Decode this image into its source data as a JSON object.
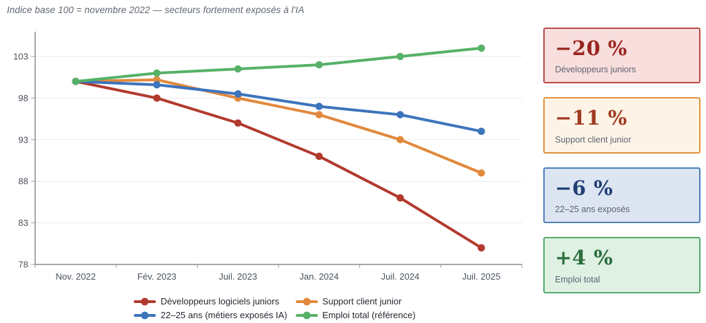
{
  "title": "Indice base 100 = novembre 2022 — secteurs fortement exposés à l'IA",
  "chart_data": {
    "type": "line",
    "x": [
      "Nov. 2022",
      "Fév. 2023",
      "Juil. 2023",
      "Jan. 2024",
      "Juil. 2024",
      "Juil. 2025"
    ],
    "series": [
      {
        "name": "Développeurs logiciels juniors",
        "color": "#b23a2e",
        "values": [
          100,
          98,
          95,
          91,
          86,
          80
        ]
      },
      {
        "name": "Support client junior",
        "color": "#e1893d",
        "values": [
          100,
          100.2,
          98,
          96,
          93,
          89
        ]
      },
      {
        "name": "22–25 ans (métiers exposés IA)",
        "color": "#3d74bb",
        "values": [
          100,
          99.6,
          98.5,
          97,
          96,
          94
        ]
      },
      {
        "name": "Emploi total (référence)",
        "color": "#57b168",
        "values": [
          100,
          101,
          101.5,
          102,
          103,
          104
        ]
      }
    ],
    "title": "Indice base 100 = novembre 2022 — secteurs fortement exposés à l'IA",
    "xlabel": "",
    "ylabel": "",
    "ylim": [
      78,
      105
    ],
    "yticks": [
      78,
      83,
      88,
      93,
      98,
      103
    ],
    "grid": true,
    "legend_position": "bottom"
  },
  "panels": [
    {
      "value": "−20 %",
      "label": "Développeurs juniors",
      "bg": "#f8dedd",
      "border": "#b84b45",
      "color": "#99251f"
    },
    {
      "value": "−11 %",
      "label": "Support client junior",
      "bg": "#fdf4e7",
      "border": "#e0903c",
      "color": "#a03a23"
    },
    {
      "value": "−6 %",
      "label": "22–25 ans exposés",
      "bg": "#dce5f1",
      "border": "#4d7eba",
      "color": "#203f76"
    },
    {
      "value": "+4 %",
      "label": "Emploi total",
      "bg": "#def1e3",
      "border": "#54a96a",
      "color": "#2c6e3c"
    }
  ]
}
